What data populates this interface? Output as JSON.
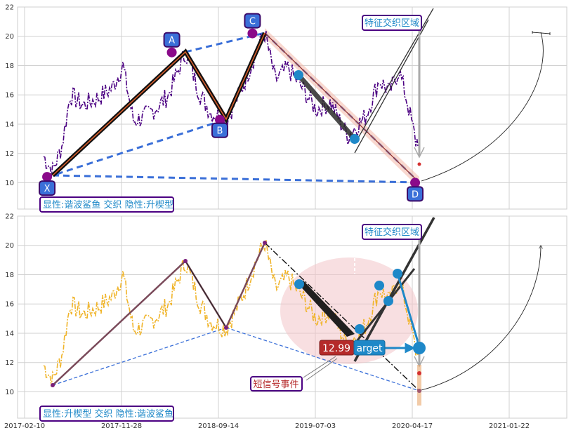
{
  "chart_data": {
    "type": "line",
    "x_ticks": [
      "2017-02-10",
      "2017-11-28",
      "2018-09-14",
      "2019-07-03",
      "2020-04-17",
      "2021-01-22"
    ],
    "y_ticks": [
      10,
      12,
      14,
      16,
      18,
      20,
      22
    ],
    "ylim": [
      8.2,
      22
    ],
    "grid": true,
    "panels": [
      {
        "name": "top",
        "price_color": "#4b0082",
        "label_box": "显性:谐波鲨鱼 交织 隐性:升楔型",
        "zone_label": "特征交织区域",
        "pattern_points": [
          {
            "label": "X",
            "x": "2017-04-18",
            "y": 10.4
          },
          {
            "label": "A",
            "x": "2018-04-24",
            "y": 18.9
          },
          {
            "label": "B",
            "x": "2018-09-14",
            "y": 14.3
          },
          {
            "label": "C",
            "x": "2018-12-20",
            "y": 20.2
          },
          {
            "label": "D",
            "x": "2020-04-17",
            "y": 10.0
          }
        ]
      },
      {
        "name": "bottom",
        "price_color": "#f0b429",
        "label_box": "显性:升楔型 交织 隐性:谐波鲨鱼",
        "zone_label": "特征交织区域",
        "signal_value": "12.99",
        "signal_text": "arget",
        "event_label": "短信号事件"
      }
    ]
  }
}
